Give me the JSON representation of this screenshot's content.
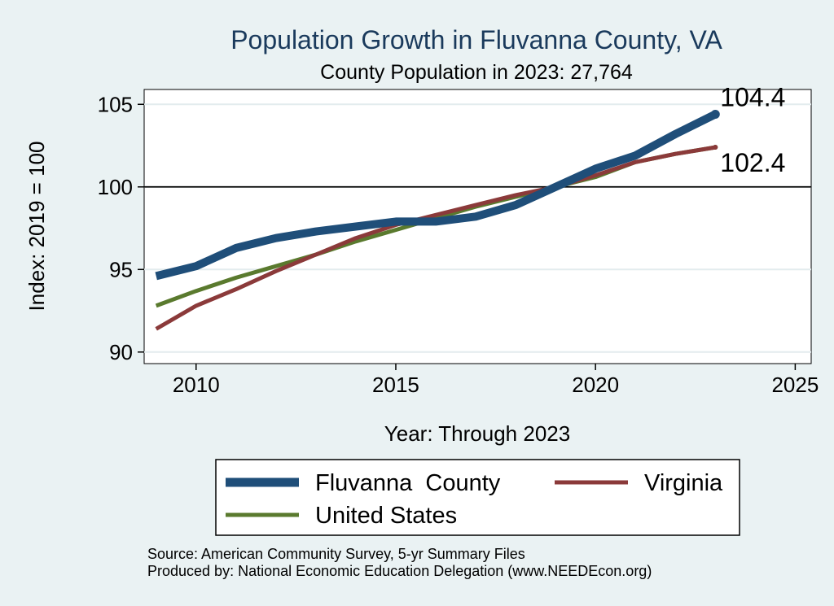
{
  "chart_data": {
    "type": "line",
    "title": "Population Growth in Fluvanna County, VA",
    "subtitle": "County Population in 2023: 27,764",
    "xlabel": "Year: Through 2023",
    "ylabel": "Index: 2019 = 100",
    "xlim": [
      2008.7,
      2025.4
    ],
    "ylim": [
      89.3,
      105.9
    ],
    "x_ticks": [
      2010,
      2015,
      2020,
      2025
    ],
    "y_ticks": [
      90,
      95,
      100,
      105
    ],
    "reference_line": 100,
    "grid": true,
    "legend_position": "bottom",
    "x": [
      2009,
      2010,
      2011,
      2012,
      2013,
      2014,
      2015,
      2016,
      2017,
      2018,
      2019,
      2020,
      2021,
      2022,
      2023
    ],
    "series": [
      {
        "name": "Fluvanna  County",
        "color": "#1f4e79",
        "values": [
          94.6,
          95.2,
          96.3,
          96.9,
          97.3,
          97.6,
          97.9,
          97.9,
          98.2,
          98.9,
          100.0,
          101.1,
          101.9,
          103.2,
          104.4
        ],
        "end_label": "104.4"
      },
      {
        "name": "Virginia",
        "color": "#8b3a3a",
        "values": [
          91.4,
          92.8,
          93.8,
          94.9,
          95.9,
          96.9,
          97.7,
          98.3,
          98.9,
          99.5,
          100.0,
          100.7,
          101.5,
          102.0,
          102.4
        ],
        "end_label": "102.4"
      },
      {
        "name": "United States",
        "color": "#5a7a2e",
        "values": [
          92.8,
          93.7,
          94.5,
          95.2,
          95.9,
          96.7,
          97.4,
          98.1,
          98.8,
          99.4,
          100.0,
          100.6,
          101.5,
          102.0,
          102.4
        ]
      }
    ],
    "source": "Source: American Community Survey, 5-yr Summary Files",
    "produced_by": "Produced by: National Economic Education Delegation (www.NEEDEcon.org)"
  }
}
